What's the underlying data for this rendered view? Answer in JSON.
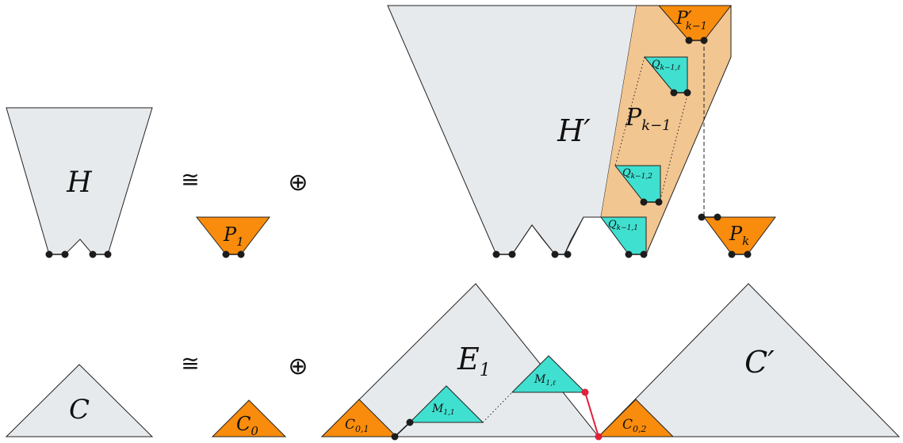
{
  "symbols": {
    "iso": "≅",
    "oplus": "⊕"
  },
  "labels": {
    "H": "H",
    "P1": "P",
    "P1_sub": "1",
    "H_prime": "H′",
    "P_km1": "P",
    "P_km1_sub": "k−1",
    "P_prime_km1": "P′",
    "P_prime_km1_sub": "k−1",
    "P_k": "P",
    "P_k_sub": "k",
    "Q_km1_l": "Q",
    "Q_km1_l_sub": "k−1,ℓ",
    "Q_km1_2": "Q",
    "Q_km1_2_sub": "k−1,2",
    "Q_km1_1": "Q",
    "Q_km1_1_sub": "k−1,1",
    "C": "C",
    "C0": "C",
    "C0_sub": "0",
    "E1": "E",
    "E1_sub": "1",
    "C_prime": "C′",
    "C01": "C",
    "C01_sub": "0,1",
    "C02": "C",
    "C02_sub": "0,2",
    "M11": "M",
    "M11_sub": "1,1",
    "M1l": "M",
    "M1l_sub": "1,ℓ"
  },
  "colors": {
    "gray_fill": "#e7eaed",
    "orange": "#f98c0c",
    "peach": "#f2c691",
    "teal": "#40e0d0",
    "red_path": "#e0203a",
    "node": "#1c1c1c"
  }
}
